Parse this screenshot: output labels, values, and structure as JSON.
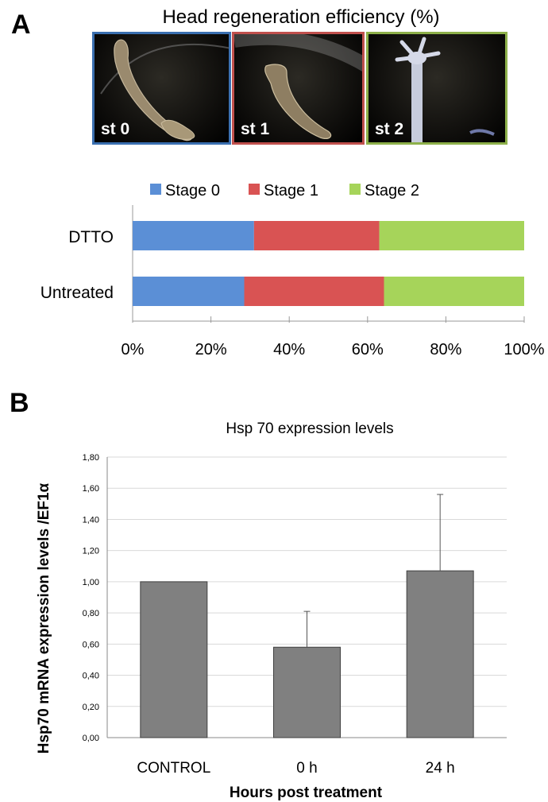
{
  "panels": {
    "a": "A",
    "b": "B"
  },
  "panel_a": {
    "title": "Head regeneration efficiency (%)",
    "photos": [
      {
        "label": "st 0",
        "border_color": "#3a6fb0"
      },
      {
        "label": "st 1",
        "border_color": "#c0504d"
      },
      {
        "label": "st 2",
        "border_color": "#8db04a"
      }
    ]
  },
  "chart_data": [
    {
      "type": "bar",
      "orientation": "horizontal",
      "stacked": true,
      "categories": [
        "DTTO",
        "Untreated"
      ],
      "series": [
        {
          "name": "Stage 0",
          "color": "#5b8fd6",
          "values": [
            31,
            28.5
          ]
        },
        {
          "name": "Stage 1",
          "color": "#d95353",
          "values": [
            32,
            35.7
          ]
        },
        {
          "name": "Stage 2",
          "color": "#a6d45a",
          "values": [
            37,
            35.8
          ]
        }
      ],
      "xlim": [
        0,
        100
      ],
      "xticks": [
        "0%",
        "20%",
        "40%",
        "60%",
        "80%",
        "100%"
      ],
      "legend": "top",
      "grid": true
    },
    {
      "type": "bar",
      "title": "Hsp 70 expression levels",
      "categories": [
        "CONTROL",
        "0 h",
        "24 h"
      ],
      "values": [
        1.0,
        0.58,
        1.07
      ],
      "error_bars": [
        0,
        0.23,
        0.49
      ],
      "bar_color": "#808080",
      "xlabel": "Hours post treatment",
      "ylabel": "Hsp70 mRNA expression levels /EF1α",
      "ylim": [
        0,
        1.8
      ],
      "yticks": [
        "0,00",
        "0,20",
        "0,40",
        "0,60",
        "0,80",
        "1,00",
        "1,20",
        "1,40",
        "1,60",
        "1,80"
      ],
      "grid": true
    }
  ]
}
